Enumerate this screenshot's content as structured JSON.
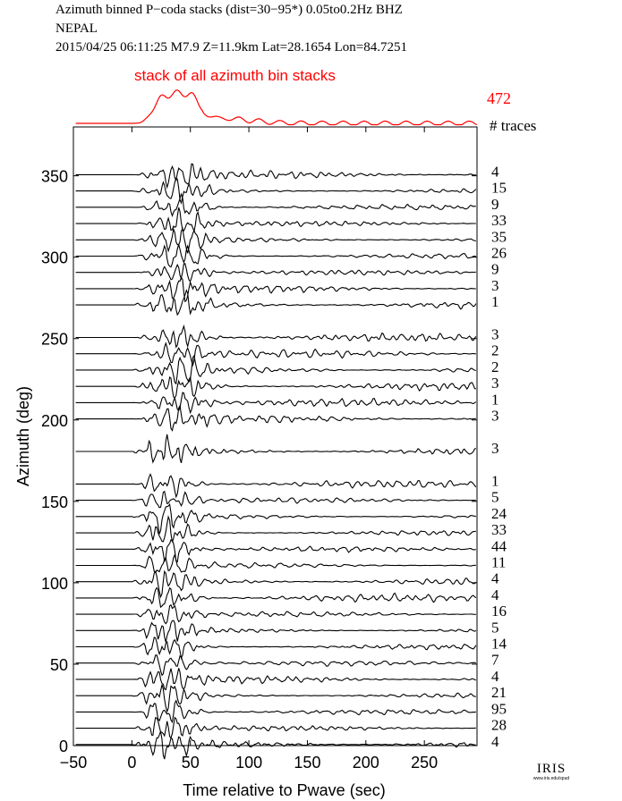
{
  "header": {
    "line1": "Azimuth binned P−coda stacks (dist=30−95*)  0.05to0.2Hz  BHZ",
    "line2": "NEPAL",
    "line3": "2015/04/25  06:11:25  M7.9  Z=11.9km Lat=28.1654 Lon=84.7251"
  },
  "logo": {
    "big": "IRIS",
    "small": "www.iris.edu/spud"
  },
  "colors": {
    "stack": "#ff0000",
    "trace": "#000000"
  },
  "chart_data": {
    "type": "line",
    "title": "",
    "xlabel": "Time relative to Pwave (sec)",
    "ylabel": "Azimuth (deg)",
    "xlim": [
      -50,
      295
    ],
    "ylim": [
      0,
      380
    ],
    "xticks": [
      -50,
      0,
      50,
      100,
      150,
      200,
      250
    ],
    "yticks": [
      0,
      50,
      100,
      150,
      200,
      250,
      300,
      350
    ],
    "stack": {
      "label": "stack of all azimuth bin stacks",
      "count": 472
    },
    "count_header": "# traces",
    "traces": [
      {
        "azimuth": 360,
        "traces": 4
      },
      {
        "azimuth": 350,
        "traces": 15
      },
      {
        "azimuth": 340,
        "traces": 9
      },
      {
        "azimuth": 330,
        "traces": 33
      },
      {
        "azimuth": 320,
        "traces": 35
      },
      {
        "azimuth": 310,
        "traces": 26
      },
      {
        "azimuth": 300,
        "traces": 9
      },
      {
        "azimuth": 290,
        "traces": 3
      },
      {
        "azimuth": 280,
        "traces": 1
      },
      {
        "azimuth": 260,
        "traces": 3
      },
      {
        "azimuth": 250,
        "traces": 2
      },
      {
        "azimuth": 240,
        "traces": 2
      },
      {
        "azimuth": 230,
        "traces": 3
      },
      {
        "azimuth": 220,
        "traces": 1
      },
      {
        "azimuth": 210,
        "traces": 3
      },
      {
        "azimuth": 190,
        "traces": 3
      },
      {
        "azimuth": 170,
        "traces": 1
      },
      {
        "azimuth": 160,
        "traces": 5
      },
      {
        "azimuth": 150,
        "traces": 24
      },
      {
        "azimuth": 140,
        "traces": 33
      },
      {
        "azimuth": 130,
        "traces": 44
      },
      {
        "azimuth": 120,
        "traces": 11
      },
      {
        "azimuth": 110,
        "traces": 4
      },
      {
        "azimuth": 100,
        "traces": 4
      },
      {
        "azimuth": 90,
        "traces": 16
      },
      {
        "azimuth": 80,
        "traces": 5
      },
      {
        "azimuth": 70,
        "traces": 14
      },
      {
        "azimuth": 60,
        "traces": 7
      },
      {
        "azimuth": 50,
        "traces": 4
      },
      {
        "azimuth": 40,
        "traces": 21
      },
      {
        "azimuth": 30,
        "traces": 95
      },
      {
        "azimuth": 20,
        "traces": 28
      },
      {
        "azimuth": 10,
        "traces": 4
      }
    ]
  }
}
